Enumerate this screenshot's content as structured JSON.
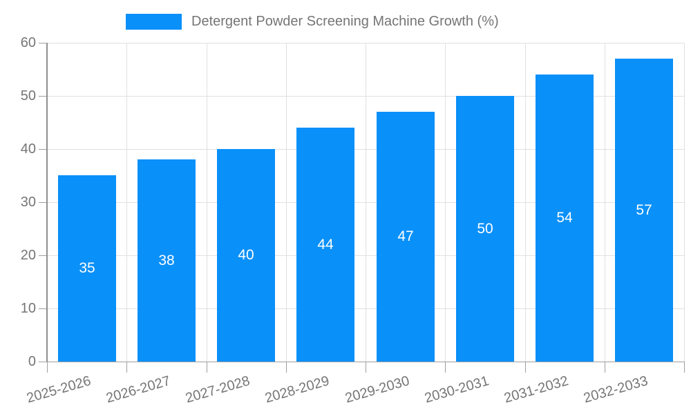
{
  "chart_data": {
    "type": "bar",
    "title": "Detergent Powder Screening Machine Growth (%)",
    "categories": [
      "2025-2026",
      "2026-2027",
      "2027-2028",
      "2028-2029",
      "2029-2030",
      "2030-2031",
      "2031-2032",
      "2032-2033"
    ],
    "values": [
      35,
      38,
      40,
      44,
      47,
      50,
      54,
      57
    ],
    "series": [
      {
        "name": "Detergent Powder Screening Machine Growth (%)",
        "values": [
          35,
          38,
          40,
          44,
          47,
          50,
          54,
          57
        ]
      }
    ],
    "xlabel": "",
    "ylabel": "",
    "ylim": [
      0,
      60
    ],
    "yticks": [
      0,
      10,
      20,
      30,
      40,
      50,
      60
    ],
    "grid": true,
    "legend_position": "top-center",
    "value_labels": "centered-inside-bars",
    "colors": {
      "bar": "#0A90F9",
      "value_label": "#FFFFFF",
      "axis_text": "#757575",
      "legend_text": "#757575",
      "gridline": "#E0E0E0",
      "axis_line": "#8F8F8F"
    }
  }
}
